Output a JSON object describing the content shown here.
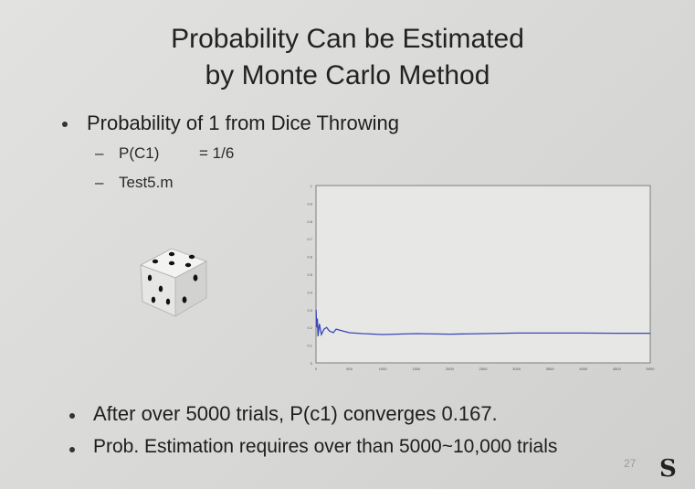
{
  "slide": {
    "title_line1": "Probability Can be Estimated",
    "title_line2": "by Monte Carlo Method",
    "bullet1": "Probability of 1 from Dice Throwing",
    "sub1_label": "P(C1)",
    "sub1_value": "= 1/6",
    "sub2": "Test5.m",
    "bullet2": "After over 5000 trials, P(c1) converges 0.167.",
    "bullet3": "Prob. Estimation requires over than 5000~10,000 trials",
    "page_number": "27",
    "logo": "S"
  },
  "chart_data": {
    "type": "line",
    "x_range": [
      0,
      5000
    ],
    "y_range": [
      0,
      1
    ],
    "x_ticks": [
      0,
      500,
      1000,
      1500,
      2000,
      2500,
      3000,
      3500,
      4000,
      4500,
      5000
    ],
    "y_ticks": [
      0,
      0.1,
      0.2,
      0.3,
      0.4,
      0.5,
      0.6,
      0.7,
      0.8,
      0.9,
      1
    ],
    "series": [
      {
        "color": "#3a48b8",
        "x": [
          1,
          10,
          20,
          30,
          50,
          80,
          120,
          160,
          200,
          260,
          300,
          400,
          500,
          700,
          1000,
          1500,
          2000,
          2500,
          3000,
          3500,
          4000,
          4500,
          5000
        ],
        "y": [
          0.3,
          0.2,
          0.25,
          0.15,
          0.22,
          0.16,
          0.19,
          0.2,
          0.18,
          0.17,
          0.19,
          0.18,
          0.17,
          0.165,
          0.16,
          0.165,
          0.162,
          0.165,
          0.168,
          0.168,
          0.168,
          0.167,
          0.167
        ]
      }
    ],
    "grid": false
  },
  "icons": {
    "dice": "dice-icon"
  }
}
